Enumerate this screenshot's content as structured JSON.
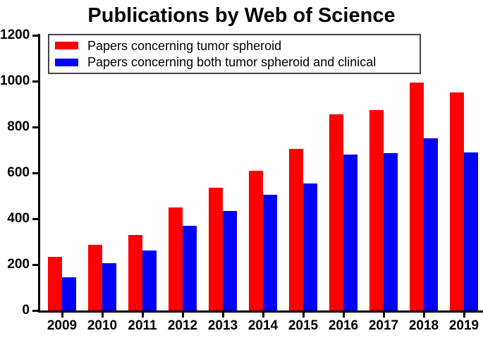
{
  "title": "Publications by Web of Science",
  "legend": {
    "items": [
      {
        "label": "Papers concerning tumor spheroid",
        "color": "#ff0000"
      },
      {
        "label": "Papers concerning both tumor spheroid and clinical",
        "color": "#0000ff"
      }
    ]
  },
  "y_axis": {
    "tick_labels": [
      "0",
      "200",
      "400",
      "600",
      "800",
      "1000",
      "1200"
    ]
  },
  "x_axis": {
    "tick_labels": [
      "2009",
      "2010",
      "2011",
      "2012",
      "2013",
      "2014",
      "2015",
      "2016",
      "2017",
      "2018",
      "2019"
    ]
  },
  "chart_data": {
    "type": "bar",
    "title": "Publications by Web of Science",
    "categories": [
      "2009",
      "2010",
      "2011",
      "2012",
      "2013",
      "2014",
      "2015",
      "2016",
      "2017",
      "2018",
      "2019"
    ],
    "series": [
      {
        "name": "Papers concerning tumor spheroid",
        "color": "#ff0000",
        "values": [
          235,
          285,
          330,
          450,
          535,
          610,
          705,
          855,
          875,
          995,
          950
        ]
      },
      {
        "name": "Papers concerning both tumor spheroid and clinical",
        "color": "#0000ff",
        "values": [
          145,
          205,
          260,
          370,
          435,
          505,
          555,
          680,
          685,
          750,
          690
        ]
      }
    ],
    "xlabel": "",
    "ylabel": "",
    "ylim": [
      0,
      1200
    ],
    "ytick_step": 200,
    "grid": false,
    "legend_position": "upper-left",
    "axis_color": "#000000",
    "background": "#ffffff"
  }
}
